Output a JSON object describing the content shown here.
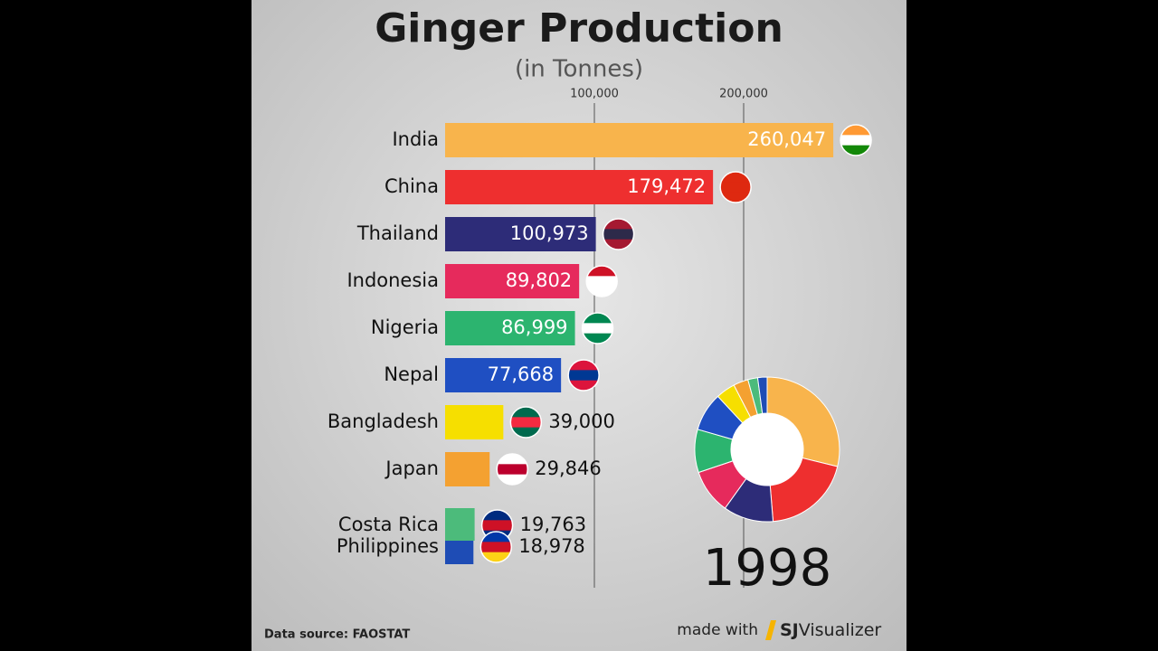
{
  "chart_data": {
    "type": "bar",
    "orientation": "horizontal",
    "title": "Ginger Production",
    "subtitle": "(in Tonnes)",
    "categories": [
      "India",
      "China",
      "Thailand",
      "Indonesia",
      "Nigeria",
      "Nepal",
      "Bangladesh",
      "Japan",
      "Costa Rica",
      "Philippines"
    ],
    "values": [
      260047,
      179472,
      100973,
      89802,
      86999,
      77668,
      39000,
      29846,
      19763,
      18978
    ],
    "value_labels": [
      "260,047",
      "179,472",
      "100,973",
      "89,802",
      "86,999",
      "77,668",
      "39,000",
      "29,846",
      "19,763",
      "18,978"
    ],
    "colors": [
      "#f8b44c",
      "#ee2f2f",
      "#2d2c78",
      "#e62a5c",
      "#2cb46f",
      "#1f4fc2",
      "#f6df00",
      "#f4a131",
      "#4cbb7b",
      "#1e4cb5"
    ],
    "xlim": [
      0,
      300000
    ],
    "xticks": [
      {
        "value": 100000,
        "label": "100,000"
      },
      {
        "value": 200000,
        "label": "200,000"
      }
    ],
    "grid": true,
    "year": "1998",
    "source": "Data source: FAOSTAT",
    "credit": "made with",
    "brand_bold": "SJ",
    "brand_rest": "Visualizer"
  }
}
